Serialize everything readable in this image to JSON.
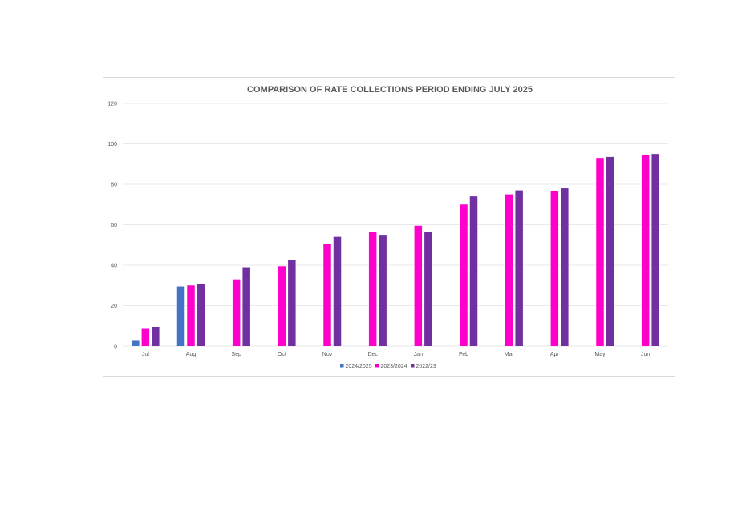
{
  "chart_data": {
    "type": "bar",
    "title": "COMPARISON OF RATE COLLECTIONS PERIOD ENDING JULY 2025",
    "xlabel": "",
    "ylabel": "",
    "ylim": [
      0,
      120
    ],
    "yticks": [
      0,
      20,
      40,
      60,
      80,
      100,
      120
    ],
    "grid": true,
    "legend_position": "bottom",
    "categories": [
      "Jul",
      "Aug",
      "Sep",
      "Oct",
      "Nov",
      "Dec",
      "Jan",
      "Feb",
      "Mar",
      "Apr",
      "May",
      "Jun"
    ],
    "series": [
      {
        "name": "2024/2025",
        "color": "#4472c4",
        "values": [
          3,
          29.5,
          null,
          null,
          null,
          null,
          null,
          null,
          null,
          null,
          null,
          null
        ]
      },
      {
        "name": "2023/2024",
        "color": "#ff00cc",
        "values": [
          8.5,
          30,
          33,
          39.5,
          50.5,
          56.5,
          59.5,
          70,
          75,
          76.5,
          93,
          94.5
        ]
      },
      {
        "name": "2022/23",
        "color": "#7030a0",
        "values": [
          9.5,
          30.5,
          39,
          42.5,
          54,
          55,
          56.5,
          74,
          77,
          78,
          93.5,
          95
        ]
      }
    ]
  }
}
